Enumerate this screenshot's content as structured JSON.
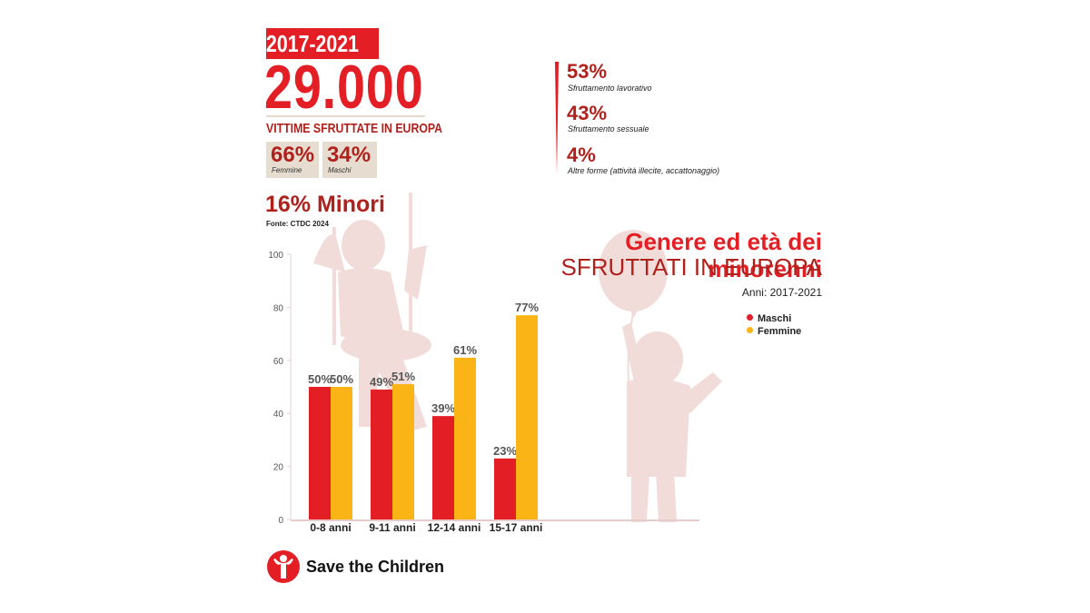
{
  "header": {
    "years": "2017-2021",
    "total": "29.000",
    "subtitle": "VITTIME SFRUTTATE IN EUROPA",
    "female_pct": "66%",
    "female_label": "Femmine",
    "male_pct": "34%",
    "male_label": "Maschi",
    "minors": "16% Minori",
    "source": "Fonte: CTDC 2024"
  },
  "exploitation": [
    {
      "pct": "53%",
      "label": "Sfruttamento lavorativo"
    },
    {
      "pct": "43%",
      "label": "Sfruttamento sessuale"
    },
    {
      "pct": "4%",
      "label": "Altre forme (attività illecite, accattonaggio)"
    }
  ],
  "colors": {
    "maschi": "#e31e24",
    "femmine": "#fbb415",
    "accent": "#b0211c",
    "silhouette": "#efd6d4"
  },
  "chart_data": {
    "type": "bar",
    "title": "Genere ed età dei minorenni",
    "subtitle": "SFRUTTATI IN EUROPA",
    "period": "Anni: 2017-2021",
    "categories": [
      "0-8 anni",
      "9-11 anni",
      "12-14 anni",
      "15-17 anni"
    ],
    "series": [
      {
        "name": "Maschi",
        "values": [
          50,
          49,
          39,
          23
        ],
        "labels": [
          "50%",
          "49%",
          "39%",
          "23%"
        ]
      },
      {
        "name": "Femmine",
        "values": [
          50,
          51,
          61,
          77
        ],
        "labels": [
          "50%",
          "51%",
          "61%",
          "77%"
        ]
      }
    ],
    "ylim": [
      0,
      100
    ],
    "yticks": [
      "0",
      "20",
      "40",
      "60",
      "80",
      "100"
    ],
    "legend": "right"
  },
  "brand": {
    "name": "Save the Children"
  }
}
